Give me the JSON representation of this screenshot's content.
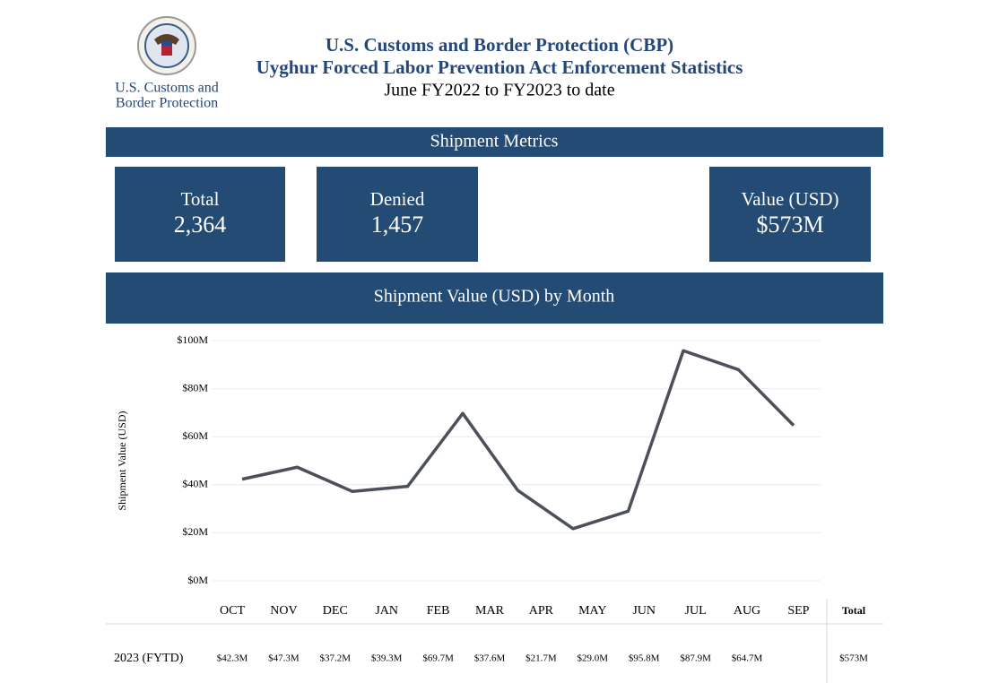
{
  "header": {
    "agency_lines": [
      "U.S. Customs and",
      "Border Protection"
    ],
    "title": "U.S. Customs and Border Protection (CBP)",
    "subtitle": "Uyghur Forced Labor Prevention Act Enforcement Statistics",
    "period": "June FY2022 to FY2023 to date"
  },
  "metrics": {
    "title": "Shipment Metrics",
    "cards": [
      {
        "label": "Total",
        "value": "2,364"
      },
      {
        "label": "Denied",
        "value": "1,457"
      },
      {
        "label": "Value (USD)",
        "value": "$573M"
      }
    ]
  },
  "chart_data": {
    "type": "line",
    "title": "Shipment Value (USD) by Month",
    "y_label": "Shipment Value (USD)",
    "categories": [
      "OCT",
      "NOV",
      "DEC",
      "JAN",
      "FEB",
      "MAR",
      "APR",
      "MAY",
      "JUN",
      "JUL",
      "AUG",
      "SEP"
    ],
    "series": [
      {
        "name": "2023 (FYTD)",
        "color": "#4b505b",
        "values": [
          42.3,
          47.3,
          37.2,
          39.3,
          69.7,
          37.6,
          21.7,
          29.0,
          95.8,
          87.9,
          64.7,
          null
        ],
        "value_labels": [
          "$42.3M",
          "$47.3M",
          "$37.2M",
          "$39.3M",
          "$69.7M",
          "$37.6M",
          "$21.7M",
          "$29.0M",
          "$95.8M",
          "$87.9M",
          "$64.7M",
          null
        ]
      }
    ],
    "ylim": [
      0,
      100
    ],
    "yticks": [
      {
        "value": 0,
        "label": "$0M"
      },
      {
        "value": 20,
        "label": "$20M"
      },
      {
        "value": 40,
        "label": "$40M"
      },
      {
        "value": 60,
        "label": "$60M"
      },
      {
        "value": 80,
        "label": "$80M"
      },
      {
        "value": 100,
        "label": "$100M"
      }
    ],
    "grid": true,
    "total_header": "Total",
    "total_label": "$573M"
  }
}
